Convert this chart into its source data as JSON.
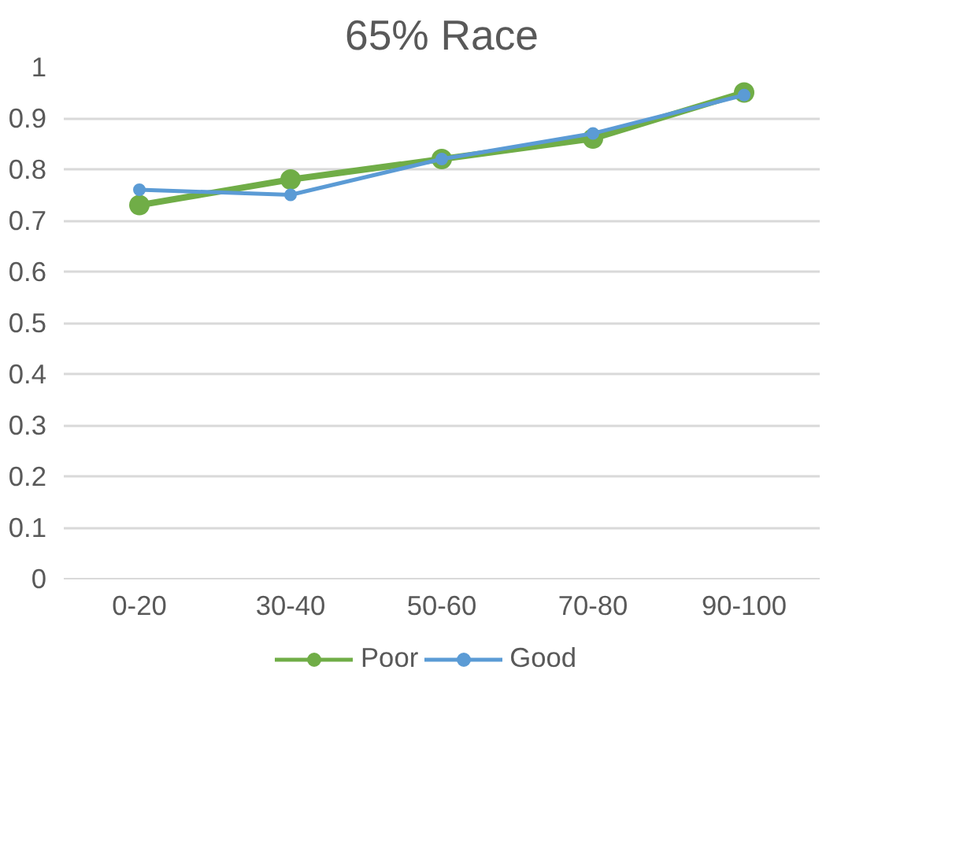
{
  "chart_data": {
    "type": "line",
    "title": "65% Race",
    "categories": [
      "0-20",
      "30-40",
      "50-60",
      "70-80",
      "90-100"
    ],
    "series": [
      {
        "name": "Poor",
        "color": "#70ad47",
        "values": [
          0.73,
          0.78,
          0.82,
          0.86,
          0.95
        ]
      },
      {
        "name": "Good",
        "color": "#5b9bd5",
        "values": [
          0.76,
          0.75,
          0.82,
          0.87,
          0.945
        ]
      }
    ],
    "ylim": [
      0,
      1
    ],
    "yticks": [
      0,
      0.1,
      0.2,
      0.3,
      0.4,
      0.5,
      0.6,
      0.7,
      0.8,
      0.9,
      1
    ],
    "grid": "y",
    "legend": "bottom",
    "marker": "circle",
    "line_style": "solid"
  }
}
